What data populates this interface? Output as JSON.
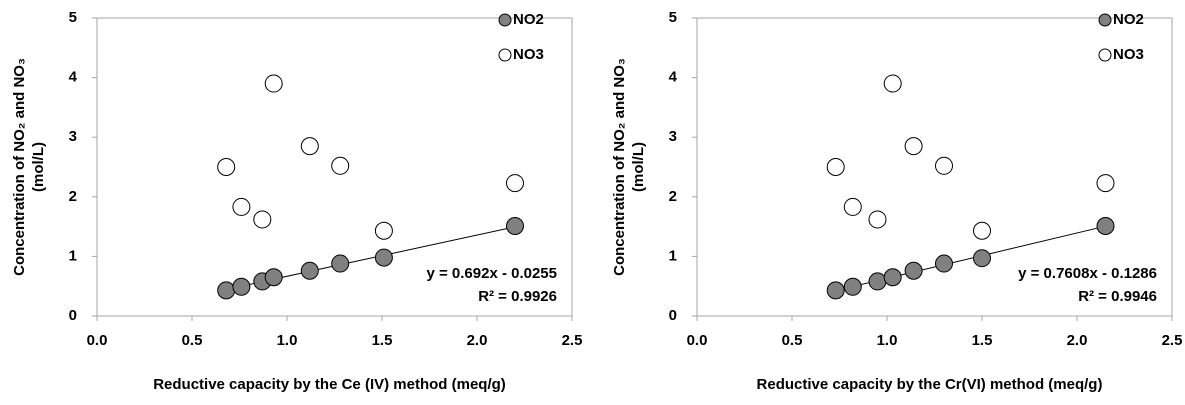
{
  "chart_data": [
    {
      "type": "scatter",
      "xlabel": "Reductive capacity by the Ce (IV) method (meq/g)",
      "ylabel": [
        "Concentration of NO₂ and NO₃",
        "(mol/L)"
      ],
      "xlim": [
        0,
        2.5
      ],
      "ylim": [
        0,
        5
      ],
      "xticks": [
        {
          "value": 0,
          "label": "0.0"
        },
        {
          "value": 0.5,
          "label": "0.5"
        },
        {
          "value": 1,
          "label": "1.0"
        },
        {
          "value": 1.5,
          "label": "1.5"
        },
        {
          "value": 2,
          "label": "2.0"
        },
        {
          "value": 2.5,
          "label": "2.5"
        }
      ],
      "yticks": [
        0,
        1,
        2,
        3,
        4,
        5
      ],
      "series": [
        {
          "name": "NO2",
          "color": "#808080",
          "x": [
            0.68,
            0.76,
            0.87,
            0.93,
            1.12,
            1.28,
            1.51,
            2.2
          ],
          "values": [
            0.43,
            0.49,
            0.58,
            0.65,
            0.76,
            0.88,
            0.98,
            1.51
          ]
        },
        {
          "name": "NO3",
          "color": "#ffffff",
          "x": [
            0.68,
            0.76,
            0.87,
            0.93,
            1.12,
            1.28,
            1.51,
            2.2
          ],
          "values": [
            2.5,
            1.83,
            1.62,
            3.9,
            2.85,
            2.52,
            1.43,
            2.23
          ]
        }
      ],
      "trendline": {
        "slope": 0.692,
        "intercept": -0.0255,
        "equation": "y = 0.692x - 0.0255",
        "r2": "R² = 0.9926"
      }
    },
    {
      "type": "scatter",
      "xlabel": "Reductive capacity by the Cr(VI) method (meq/g)",
      "ylabel": [
        "Concentration of NO₂ and NO₃",
        "(mol/L)"
      ],
      "xlim": [
        0,
        2.5
      ],
      "ylim": [
        0,
        5
      ],
      "xticks": [
        {
          "value": 0,
          "label": "0.0"
        },
        {
          "value": 0.5,
          "label": "0.5"
        },
        {
          "value": 1,
          "label": "1.0"
        },
        {
          "value": 1.5,
          "label": "1.5"
        },
        {
          "value": 2,
          "label": "2.0"
        },
        {
          "value": 2.5,
          "label": "2.5"
        }
      ],
      "yticks": [
        0,
        1,
        2,
        3,
        4,
        5
      ],
      "series": [
        {
          "name": "NO2",
          "color": "#808080",
          "x": [
            0.73,
            0.82,
            0.95,
            1.03,
            1.14,
            1.3,
            1.5,
            2.15
          ],
          "values": [
            0.43,
            0.49,
            0.58,
            0.65,
            0.76,
            0.88,
            0.97,
            1.51
          ]
        },
        {
          "name": "NO3",
          "color": "#ffffff",
          "x": [
            0.73,
            0.82,
            0.95,
            1.03,
            1.14,
            1.3,
            1.5,
            2.15
          ],
          "values": [
            2.5,
            1.83,
            1.62,
            3.9,
            2.85,
            2.52,
            1.43,
            2.23
          ]
        }
      ],
      "trendline": {
        "slope": 0.7608,
        "intercept": -0.1286,
        "equation": "y = 0.7608x - 0.1286",
        "r2": "R² = 0.9946"
      }
    }
  ]
}
